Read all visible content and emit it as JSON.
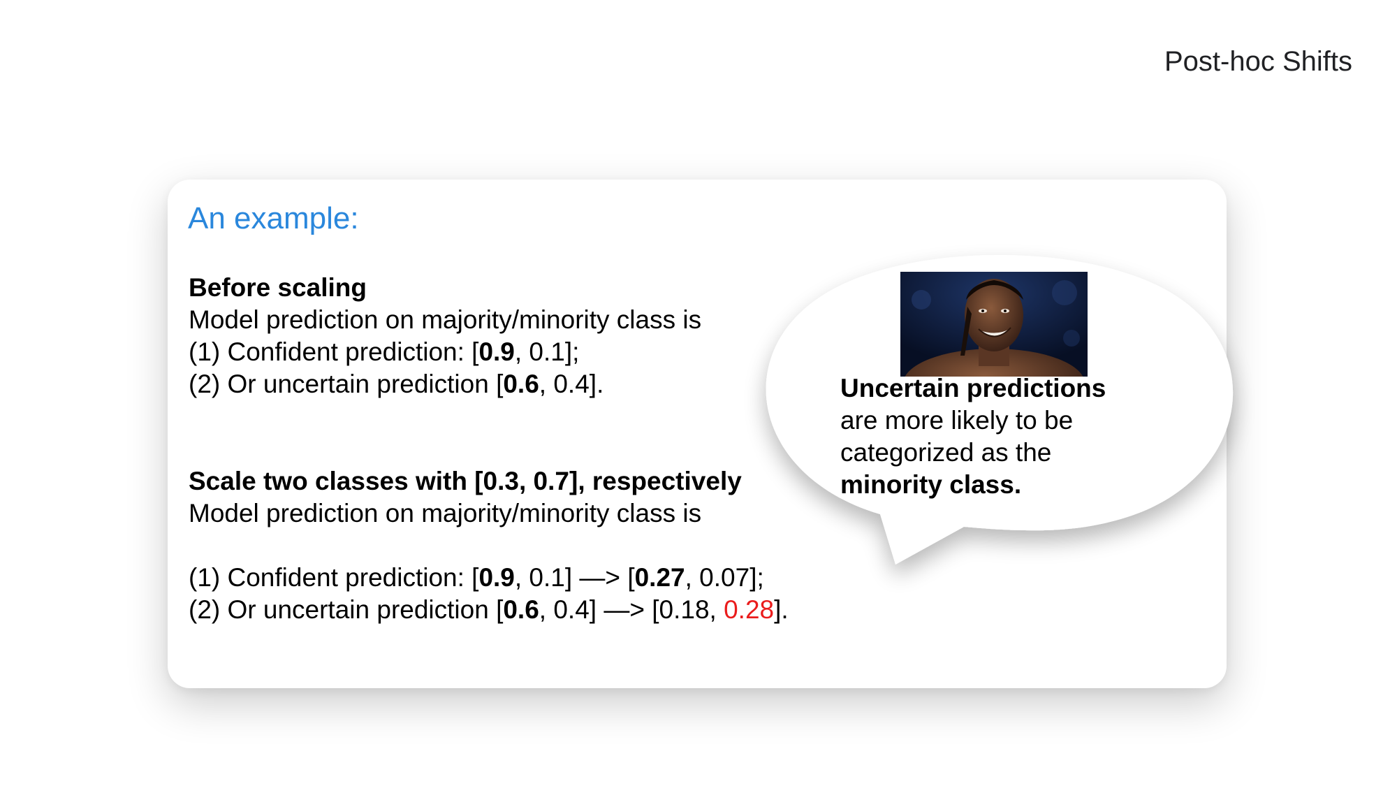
{
  "slide": {
    "title": "Post-hoc Shifts"
  },
  "card": {
    "heading": "An example:",
    "before": {
      "title": "Before scaling",
      "intro": "Model prediction on majority/minority class is",
      "line1": {
        "prefix": "(1) Confident prediction: [",
        "bold_value": "0.9",
        "suffix": ", 0.1];"
      },
      "line2": {
        "prefix": "(2) Or uncertain prediction [",
        "bold_value": "0.6",
        "suffix": ", 0.4]."
      }
    },
    "scale": {
      "title": "Scale two classes with [0.3, 0.7], respectively",
      "intro": "Model prediction on majority/minority class is",
      "line1": {
        "prefix": "(1) Confident prediction: [",
        "bold_value": "0.9",
        "mid": ", 0.1] —> [",
        "bold_result": "0.27",
        "suffix": ", 0.07];"
      },
      "line2": {
        "prefix": "(2) Or uncertain prediction [",
        "bold_value": "0.6",
        "mid": ", 0.4] —> [0.18, ",
        "red_result": "0.28",
        "suffix": "]."
      }
    }
  },
  "bubble": {
    "bold_start": "Uncertain predictions",
    "line2": "are more likely to be",
    "line3": "categorized as the",
    "bold_end": "minority class.",
    "image_icon": "smiling-wrestler-photo"
  },
  "colors": {
    "heading_blue": "#2a87dc",
    "highlight_red": "#ea1c1c"
  }
}
